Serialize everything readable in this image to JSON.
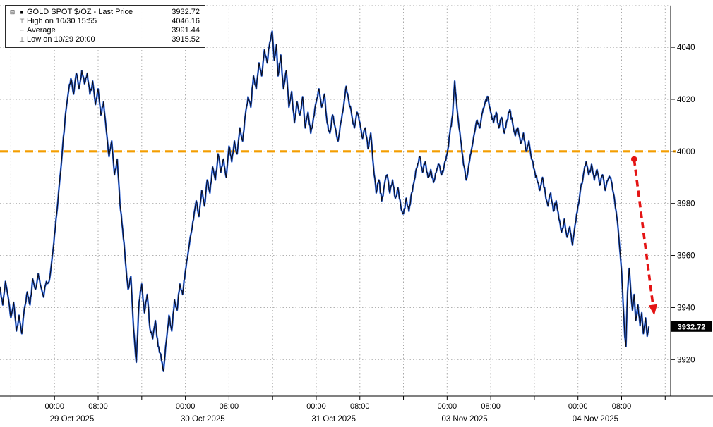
{
  "legend": {
    "icons": {
      "expand": "⊟",
      "series": "■",
      "high": "⊤",
      "average": "┄",
      "low": "⊥"
    },
    "rows": [
      {
        "label": "GOLD SPOT $/OZ - Last Price",
        "value": "3932.72"
      },
      {
        "label": "High on 10/30 15:55",
        "value": "4046.16"
      },
      {
        "label": "Average",
        "value": "3991.44"
      },
      {
        "label": "Low on 10/29 20:00",
        "value": "3915.52"
      }
    ]
  },
  "chart_data": {
    "type": "line",
    "title": "GOLD SPOT $/OZ - Last Price",
    "instrument": "GOLD SPOT $/OZ",
    "last_price": 3932.72,
    "high": {
      "time": "10/30 15:55",
      "value": 4046.16
    },
    "average": 3991.44,
    "low": {
      "time": "10/29 20:00",
      "value": 3915.52
    },
    "ylim": [
      3906,
      4056
    ],
    "y_ticks": [
      3920,
      3940,
      3960,
      3980,
      4000,
      4020,
      4040
    ],
    "x_hours_domain": [
      -10,
      113
    ],
    "x_unit": "hours from 29 Oct 2025 00:00, weekend compressed",
    "time_labels": [
      "00:00",
      "08:00"
    ],
    "days": [
      {
        "label": "",
        "t00": -24
      },
      {
        "label": "29 Oct 2025",
        "t00": 0
      },
      {
        "label": "30 Oct 2025",
        "t00": 24
      },
      {
        "label": "31 Oct 2025",
        "t00": 48
      },
      {
        "label": "03 Nov 2025",
        "t00": 72
      },
      {
        "label": "04 Nov 2025",
        "t00": 96
      }
    ],
    "grid_color": "#a6a6a6",
    "reference_line": {
      "value": 4000,
      "color": "#F49D00",
      "style": "dashed"
    },
    "annotation_arrow": {
      "from": [
        106.3,
        3997
      ],
      "to": [
        110,
        3937
      ],
      "color": "#e41414",
      "style": "dashed"
    },
    "last_price_label": {
      "text": "3932.72",
      "bg": "#000000",
      "fg": "#ffffff"
    },
    "series": [
      {
        "name": "GOLD SPOT $/OZ - Last Price",
        "color": "#0b0b14",
        "underlay_color": "#2b62d9",
        "points": [
          [
            -10,
            3948
          ],
          [
            -9.5,
            3941
          ],
          [
            -9,
            3950
          ],
          [
            -8.5,
            3944
          ],
          [
            -8,
            3936
          ],
          [
            -7.5,
            3942
          ],
          [
            -7,
            3931
          ],
          [
            -6.5,
            3937
          ],
          [
            -6,
            3930
          ],
          [
            -5.5,
            3940
          ],
          [
            -5,
            3946
          ],
          [
            -4.5,
            3941
          ],
          [
            -4,
            3951
          ],
          [
            -3.5,
            3947
          ],
          [
            -3,
            3953
          ],
          [
            -2.5,
            3948
          ],
          [
            -2,
            3944
          ],
          [
            -1.5,
            3950
          ],
          [
            -1,
            3950
          ],
          [
            -0.5,
            3958
          ],
          [
            0,
            3968
          ],
          [
            0.5,
            3978
          ],
          [
            1,
            3990
          ],
          [
            1.5,
            4002
          ],
          [
            2,
            4014
          ],
          [
            2.5,
            4022
          ],
          [
            3,
            4028
          ],
          [
            3.5,
            4022
          ],
          [
            4,
            4030
          ],
          [
            4.5,
            4024
          ],
          [
            5,
            4031
          ],
          [
            5.5,
            4026
          ],
          [
            6,
            4030
          ],
          [
            6.5,
            4022
          ],
          [
            7,
            4027
          ],
          [
            7.5,
            4018
          ],
          [
            8,
            4024
          ],
          [
            8.5,
            4014
          ],
          [
            9,
            4019
          ],
          [
            9.5,
            4008
          ],
          [
            10,
            3998
          ],
          [
            10.5,
            4004
          ],
          [
            11,
            3991
          ],
          [
            11.5,
            3997
          ],
          [
            12,
            3980
          ],
          [
            12.5,
            3970
          ],
          [
            13,
            3958
          ],
          [
            13.5,
            3947
          ],
          [
            14,
            3952
          ],
          [
            14.5,
            3932
          ],
          [
            15,
            3919
          ],
          [
            15.5,
            3942
          ],
          [
            16,
            3949
          ],
          [
            16.5,
            3938
          ],
          [
            17,
            3945
          ],
          [
            17.5,
            3932
          ],
          [
            18,
            3928
          ],
          [
            18.5,
            3935
          ],
          [
            19,
            3925
          ],
          [
            19.5,
            3922
          ],
          [
            20,
            3915.52
          ],
          [
            20.5,
            3927
          ],
          [
            21,
            3937
          ],
          [
            21.5,
            3931
          ],
          [
            22,
            3943
          ],
          [
            22.5,
            3939
          ],
          [
            23,
            3949
          ],
          [
            23.5,
            3945
          ],
          [
            24,
            3954
          ],
          [
            24.5,
            3961
          ],
          [
            25,
            3968
          ],
          [
            25.5,
            3974
          ],
          [
            26,
            3981
          ],
          [
            26.5,
            3975
          ],
          [
            27,
            3985
          ],
          [
            27.5,
            3979
          ],
          [
            28,
            3989
          ],
          [
            28.5,
            3984
          ],
          [
            29,
            3994
          ],
          [
            29.5,
            3989
          ],
          [
            30,
            3999
          ],
          [
            30.5,
            3992
          ],
          [
            31,
            3997
          ],
          [
            31.5,
            3990
          ],
          [
            32,
            4002
          ],
          [
            32.5,
            3996
          ],
          [
            33,
            4004
          ],
          [
            33.5,
            3999
          ],
          [
            34,
            4009
          ],
          [
            34.5,
            4004
          ],
          [
            35,
            4014
          ],
          [
            35.5,
            4021
          ],
          [
            36,
            4017
          ],
          [
            36.5,
            4029
          ],
          [
            37,
            4024
          ],
          [
            37.5,
            4034
          ],
          [
            38,
            4029
          ],
          [
            38.5,
            4039
          ],
          [
            39,
            4034
          ],
          [
            39.5,
            4042
          ],
          [
            39.92,
            4046.16
          ],
          [
            40.3,
            4035
          ],
          [
            40.7,
            4041
          ],
          [
            41,
            4029
          ],
          [
            41.5,
            4037
          ],
          [
            42,
            4024
          ],
          [
            42.5,
            4031
          ],
          [
            43,
            4017
          ],
          [
            43.5,
            4023
          ],
          [
            44,
            4011
          ],
          [
            44.5,
            4019
          ],
          [
            45,
            4014
          ],
          [
            45.5,
            4021
          ],
          [
            46,
            4009
          ],
          [
            46.5,
            4015
          ],
          [
            47,
            4007
          ],
          [
            47.5,
            4013
          ],
          [
            48,
            4019
          ],
          [
            48.5,
            4024
          ],
          [
            49,
            4017
          ],
          [
            49.5,
            4022
          ],
          [
            50,
            4011
          ],
          [
            50.5,
            4007
          ],
          [
            51,
            4014
          ],
          [
            51.5,
            4009
          ],
          [
            52,
            4004
          ],
          [
            52.5,
            4011
          ],
          [
            53,
            4017
          ],
          [
            53.5,
            4025
          ],
          [
            54,
            4019
          ],
          [
            54.5,
            4014
          ],
          [
            55,
            4009
          ],
          [
            55.5,
            4015
          ],
          [
            56,
            4011
          ],
          [
            56.5,
            4005
          ],
          [
            57,
            4009
          ],
          [
            57.5,
            4001
          ],
          [
            58,
            4007
          ],
          [
            58.5,
            3994
          ],
          [
            59,
            3984
          ],
          [
            59.5,
            3989
          ],
          [
            60,
            3981
          ],
          [
            60.5,
            3987
          ],
          [
            61,
            3991
          ],
          [
            61.5,
            3984
          ],
          [
            62,
            3989
          ],
          [
            62.5,
            3982
          ],
          [
            63,
            3986
          ],
          [
            63.5,
            3979
          ],
          [
            64,
            3976
          ],
          [
            64.5,
            3982
          ],
          [
            65,
            3977
          ],
          [
            65.5,
            3984
          ],
          [
            66,
            3989
          ],
          [
            66.5,
            3994
          ],
          [
            67,
            3998
          ],
          [
            67.5,
            3992
          ],
          [
            68,
            3996
          ],
          [
            68.5,
            3990
          ],
          [
            69,
            3993
          ],
          [
            69.5,
            3988
          ],
          [
            70,
            3992
          ],
          [
            70.5,
            3995
          ],
          [
            71,
            3991
          ],
          [
            71.5,
            3995
          ],
          [
            72,
            3999
          ],
          [
            72.5,
            4007
          ],
          [
            73,
            4014
          ],
          [
            73.4,
            4027
          ],
          [
            73.8,
            4017
          ],
          [
            74.2,
            4009
          ],
          [
            74.6,
            4003
          ],
          [
            75,
            3995
          ],
          [
            75.5,
            3989
          ],
          [
            76,
            3995
          ],
          [
            76.5,
            4001
          ],
          [
            77,
            4007
          ],
          [
            77.5,
            4012
          ],
          [
            78,
            4009
          ],
          [
            78.5,
            4015
          ],
          [
            79,
            4019
          ],
          [
            79.5,
            4021
          ],
          [
            80,
            4015
          ],
          [
            80.5,
            4011
          ],
          [
            81,
            4015
          ],
          [
            81.5,
            4009
          ],
          [
            82,
            4013
          ],
          [
            82.5,
            4007
          ],
          [
            83,
            4012
          ],
          [
            83.5,
            4016
          ],
          [
            84,
            4011
          ],
          [
            84.5,
            4006
          ],
          [
            85,
            4009
          ],
          [
            85.5,
            4003
          ],
          [
            86,
            4007
          ],
          [
            86.5,
            4000
          ],
          [
            87,
            4004
          ],
          [
            87.5,
            3997
          ],
          [
            88,
            3993
          ],
          [
            88.5,
            3989
          ],
          [
            89,
            3985
          ],
          [
            89.5,
            3990
          ],
          [
            90,
            3984
          ],
          [
            90.5,
            3979
          ],
          [
            91,
            3984
          ],
          [
            91.5,
            3977
          ],
          [
            92,
            3981
          ],
          [
            92.5,
            3974
          ],
          [
            93,
            3969
          ],
          [
            93.5,
            3974
          ],
          [
            94,
            3967
          ],
          [
            94.5,
            3971
          ],
          [
            95,
            3964
          ],
          [
            95.5,
            3972
          ],
          [
            96,
            3979
          ],
          [
            96.5,
            3986
          ],
          [
            97,
            3991
          ],
          [
            97.5,
            3996
          ],
          [
            98,
            3991
          ],
          [
            98.5,
            3995
          ],
          [
            99,
            3989
          ],
          [
            99.5,
            3993
          ],
          [
            100,
            3987
          ],
          [
            100.5,
            3991
          ],
          [
            101,
            3985
          ],
          [
            101.5,
            3989
          ],
          [
            102,
            3990
          ],
          [
            102.5,
            3984
          ],
          [
            103,
            3977
          ],
          [
            103.5,
            3967
          ],
          [
            104,
            3954
          ],
          [
            104.3,
            3941
          ],
          [
            104.6,
            3929
          ],
          [
            104.8,
            3925
          ],
          [
            105.1,
            3946
          ],
          [
            105.4,
            3955
          ],
          [
            105.7,
            3946
          ],
          [
            106,
            3939
          ],
          [
            106.3,
            3945
          ],
          [
            106.6,
            3935
          ],
          [
            107,
            3941
          ],
          [
            107.4,
            3933
          ],
          [
            107.7,
            3938
          ],
          [
            108,
            3930
          ],
          [
            108.4,
            3936
          ],
          [
            108.7,
            3929
          ],
          [
            109,
            3932.72
          ]
        ]
      }
    ]
  }
}
